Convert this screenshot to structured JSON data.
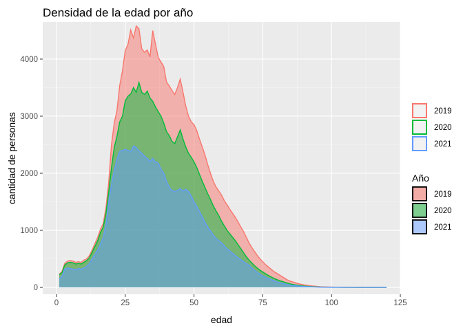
{
  "chart_data": {
    "type": "area",
    "title": "Densidad de la edad por año",
    "xlabel": "edad",
    "ylabel": "cantidad de personas",
    "xlim": [
      -5,
      125
    ],
    "ylim": [
      -120,
      4650
    ],
    "x_ticks": [
      0,
      25,
      50,
      75,
      100,
      125
    ],
    "y_ticks": [
      0,
      1000,
      2000,
      3000,
      4000
    ],
    "grid": true,
    "legend_placement": "right",
    "series": [
      {
        "name": "2019",
        "stroke": "#F8766D",
        "fill": "#F8766D",
        "points": [
          [
            1,
            230
          ],
          [
            2,
            280
          ],
          [
            3,
            420
          ],
          [
            4,
            460
          ],
          [
            5,
            470
          ],
          [
            6,
            460
          ],
          [
            7,
            440
          ],
          [
            8,
            450
          ],
          [
            9,
            440
          ],
          [
            10,
            480
          ],
          [
            11,
            500
          ],
          [
            12,
            560
          ],
          [
            13,
            660
          ],
          [
            14,
            770
          ],
          [
            15,
            880
          ],
          [
            16,
            1020
          ],
          [
            17,
            1120
          ],
          [
            18,
            1400
          ],
          [
            19,
            1850
          ],
          [
            20,
            2500
          ],
          [
            21,
            2880
          ],
          [
            22,
            3100
          ],
          [
            23,
            3540
          ],
          [
            24,
            3800
          ],
          [
            25,
            4150
          ],
          [
            26,
            4260
          ],
          [
            27,
            4510
          ],
          [
            28,
            4370
          ],
          [
            29,
            4580
          ],
          [
            30,
            4530
          ],
          [
            31,
            4180
          ],
          [
            32,
            4120
          ],
          [
            33,
            4160
          ],
          [
            34,
            4040
          ],
          [
            35,
            4500
          ],
          [
            36,
            4260
          ],
          [
            37,
            4030
          ],
          [
            38,
            3950
          ],
          [
            39,
            3870
          ],
          [
            40,
            3600
          ],
          [
            41,
            3530
          ],
          [
            42,
            3450
          ],
          [
            43,
            3380
          ],
          [
            44,
            3500
          ],
          [
            45,
            3650
          ],
          [
            46,
            3420
          ],
          [
            47,
            3180
          ],
          [
            48,
            3000
          ],
          [
            49,
            2900
          ],
          [
            50,
            2850
          ],
          [
            51,
            2750
          ],
          [
            52,
            2600
          ],
          [
            53,
            2460
          ],
          [
            54,
            2320
          ],
          [
            55,
            2150
          ],
          [
            56,
            2000
          ],
          [
            57,
            1860
          ],
          [
            58,
            1760
          ],
          [
            59,
            1690
          ],
          [
            60,
            1620
          ],
          [
            61,
            1520
          ],
          [
            62,
            1450
          ],
          [
            63,
            1370
          ],
          [
            64,
            1300
          ],
          [
            65,
            1230
          ],
          [
            66,
            1150
          ],
          [
            67,
            1060
          ],
          [
            68,
            980
          ],
          [
            69,
            880
          ],
          [
            70,
            780
          ],
          [
            71,
            700
          ],
          [
            72,
            630
          ],
          [
            73,
            560
          ],
          [
            74,
            500
          ],
          [
            75,
            450
          ],
          [
            76,
            400
          ],
          [
            77,
            360
          ],
          [
            78,
            320
          ],
          [
            79,
            280
          ],
          [
            80,
            250
          ],
          [
            81,
            220
          ],
          [
            82,
            190
          ],
          [
            83,
            160
          ],
          [
            84,
            130
          ],
          [
            85,
            110
          ],
          [
            86,
            95
          ],
          [
            87,
            80
          ],
          [
            88,
            65
          ],
          [
            89,
            55
          ],
          [
            90,
            45
          ],
          [
            92,
            30
          ],
          [
            94,
            20
          ],
          [
            96,
            12
          ],
          [
            98,
            8
          ],
          [
            100,
            5
          ],
          [
            105,
            2
          ],
          [
            110,
            1
          ],
          [
            120,
            0
          ]
        ]
      },
      {
        "name": "2020",
        "stroke": "#00BA38",
        "fill": "#00BA38",
        "points": [
          [
            1,
            220
          ],
          [
            2,
            260
          ],
          [
            3,
            390
          ],
          [
            4,
            430
          ],
          [
            5,
            440
          ],
          [
            6,
            430
          ],
          [
            7,
            410
          ],
          [
            8,
            420
          ],
          [
            9,
            410
          ],
          [
            10,
            440
          ],
          [
            11,
            470
          ],
          [
            12,
            520
          ],
          [
            13,
            620
          ],
          [
            14,
            720
          ],
          [
            15,
            820
          ],
          [
            16,
            960
          ],
          [
            17,
            1060
          ],
          [
            18,
            1300
          ],
          [
            19,
            1680
          ],
          [
            20,
            2100
          ],
          [
            21,
            2450
          ],
          [
            22,
            2650
          ],
          [
            23,
            2900
          ],
          [
            24,
            3000
          ],
          [
            25,
            3270
          ],
          [
            26,
            3350
          ],
          [
            27,
            3390
          ],
          [
            28,
            3500
          ],
          [
            29,
            3420
          ],
          [
            30,
            3590
          ],
          [
            31,
            3420
          ],
          [
            32,
            3380
          ],
          [
            33,
            3440
          ],
          [
            34,
            3320
          ],
          [
            35,
            3260
          ],
          [
            36,
            3160
          ],
          [
            37,
            3080
          ],
          [
            38,
            3000
          ],
          [
            39,
            2880
          ],
          [
            40,
            2730
          ],
          [
            41,
            2660
          ],
          [
            42,
            2560
          ],
          [
            43,
            2520
          ],
          [
            44,
            2640
          ],
          [
            45,
            2760
          ],
          [
            46,
            2600
          ],
          [
            47,
            2460
          ],
          [
            48,
            2350
          ],
          [
            49,
            2280
          ],
          [
            50,
            2200
          ],
          [
            51,
            2100
          ],
          [
            52,
            1980
          ],
          [
            53,
            1860
          ],
          [
            54,
            1750
          ],
          [
            55,
            1640
          ],
          [
            56,
            1540
          ],
          [
            57,
            1430
          ],
          [
            58,
            1340
          ],
          [
            59,
            1260
          ],
          [
            60,
            1160
          ],
          [
            61,
            1080
          ],
          [
            62,
            1000
          ],
          [
            63,
            940
          ],
          [
            64,
            880
          ],
          [
            65,
            820
          ],
          [
            66,
            750
          ],
          [
            67,
            680
          ],
          [
            68,
            610
          ],
          [
            69,
            540
          ],
          [
            70,
            480
          ],
          [
            71,
            430
          ],
          [
            72,
            380
          ],
          [
            73,
            340
          ],
          [
            74,
            300
          ],
          [
            75,
            270
          ],
          [
            76,
            240
          ],
          [
            77,
            210
          ],
          [
            78,
            185
          ],
          [
            79,
            160
          ],
          [
            80,
            140
          ],
          [
            81,
            120
          ],
          [
            82,
            105
          ],
          [
            83,
            90
          ],
          [
            84,
            75
          ],
          [
            85,
            62
          ],
          [
            86,
            52
          ],
          [
            87,
            44
          ],
          [
            88,
            36
          ],
          [
            89,
            30
          ],
          [
            90,
            24
          ],
          [
            92,
            16
          ],
          [
            94,
            10
          ],
          [
            96,
            6
          ],
          [
            98,
            4
          ],
          [
            100,
            3
          ],
          [
            105,
            1
          ],
          [
            110,
            0
          ],
          [
            120,
            0
          ]
        ]
      },
      {
        "name": "2021",
        "stroke": "#619CFF",
        "fill": "#619CFF",
        "points": [
          [
            1,
            150
          ],
          [
            2,
            190
          ],
          [
            3,
            320
          ],
          [
            4,
            340
          ],
          [
            5,
            330
          ],
          [
            6,
            320
          ],
          [
            7,
            310
          ],
          [
            8,
            330
          ],
          [
            9,
            320
          ],
          [
            10,
            340
          ],
          [
            11,
            370
          ],
          [
            12,
            420
          ],
          [
            13,
            500
          ],
          [
            14,
            580
          ],
          [
            15,
            660
          ],
          [
            16,
            760
          ],
          [
            17,
            880
          ],
          [
            18,
            1100
          ],
          [
            19,
            1500
          ],
          [
            20,
            1800
          ],
          [
            21,
            2050
          ],
          [
            22,
            2250
          ],
          [
            23,
            2380
          ],
          [
            24,
            2400
          ],
          [
            25,
            2420
          ],
          [
            26,
            2400
          ],
          [
            27,
            2380
          ],
          [
            28,
            2480
          ],
          [
            29,
            2450
          ],
          [
            30,
            2390
          ],
          [
            31,
            2350
          ],
          [
            32,
            2300
          ],
          [
            33,
            2260
          ],
          [
            34,
            2210
          ],
          [
            35,
            2260
          ],
          [
            36,
            2200
          ],
          [
            37,
            2180
          ],
          [
            38,
            2070
          ],
          [
            39,
            2000
          ],
          [
            40,
            1860
          ],
          [
            41,
            1760
          ],
          [
            42,
            1700
          ],
          [
            43,
            1680
          ],
          [
            44,
            1700
          ],
          [
            45,
            1730
          ],
          [
            46,
            1690
          ],
          [
            47,
            1720
          ],
          [
            48,
            1680
          ],
          [
            49,
            1600
          ],
          [
            50,
            1500
          ],
          [
            51,
            1420
          ],
          [
            52,
            1330
          ],
          [
            53,
            1240
          ],
          [
            54,
            1140
          ],
          [
            55,
            1060
          ],
          [
            56,
            990
          ],
          [
            57,
            920
          ],
          [
            58,
            860
          ],
          [
            59,
            820
          ],
          [
            60,
            780
          ],
          [
            61,
            730
          ],
          [
            62,
            680
          ],
          [
            63,
            640
          ],
          [
            64,
            600
          ],
          [
            65,
            560
          ],
          [
            66,
            520
          ],
          [
            67,
            490
          ],
          [
            68,
            450
          ],
          [
            69,
            420
          ],
          [
            70,
            390
          ],
          [
            71,
            340
          ],
          [
            72,
            300
          ],
          [
            73,
            265
          ],
          [
            74,
            230
          ],
          [
            75,
            200
          ],
          [
            76,
            180
          ],
          [
            77,
            160
          ],
          [
            78,
            140
          ],
          [
            79,
            120
          ],
          [
            80,
            100
          ],
          [
            81,
            85
          ],
          [
            82,
            72
          ],
          [
            83,
            60
          ],
          [
            84,
            50
          ],
          [
            85,
            42
          ],
          [
            86,
            35
          ],
          [
            87,
            29
          ],
          [
            88,
            24
          ],
          [
            89,
            20
          ],
          [
            90,
            16
          ],
          [
            92,
            11
          ],
          [
            94,
            7
          ],
          [
            96,
            5
          ],
          [
            98,
            3
          ],
          [
            100,
            2
          ],
          [
            105,
            1
          ],
          [
            110,
            0
          ],
          [
            120,
            0
          ]
        ]
      }
    ],
    "legend_outline": {
      "entries": [
        {
          "label": "2019",
          "stroke": "#F8766D"
        },
        {
          "label": "2020",
          "stroke": "#00BA38"
        },
        {
          "label": "2021",
          "stroke": "#619CFF"
        }
      ]
    },
    "legend_fill": {
      "title": "Año",
      "entries": [
        {
          "label": "2019",
          "fill": "#F4ACA6"
        },
        {
          "label": "2020",
          "fill": "#7ECF8F"
        },
        {
          "label": "2021",
          "fill": "#ADC8FA"
        }
      ]
    },
    "colors": {
      "panel": "#EBEBEB",
      "grid_major": "#FFFFFF",
      "grid_minor": "#F5F5F5"
    }
  }
}
